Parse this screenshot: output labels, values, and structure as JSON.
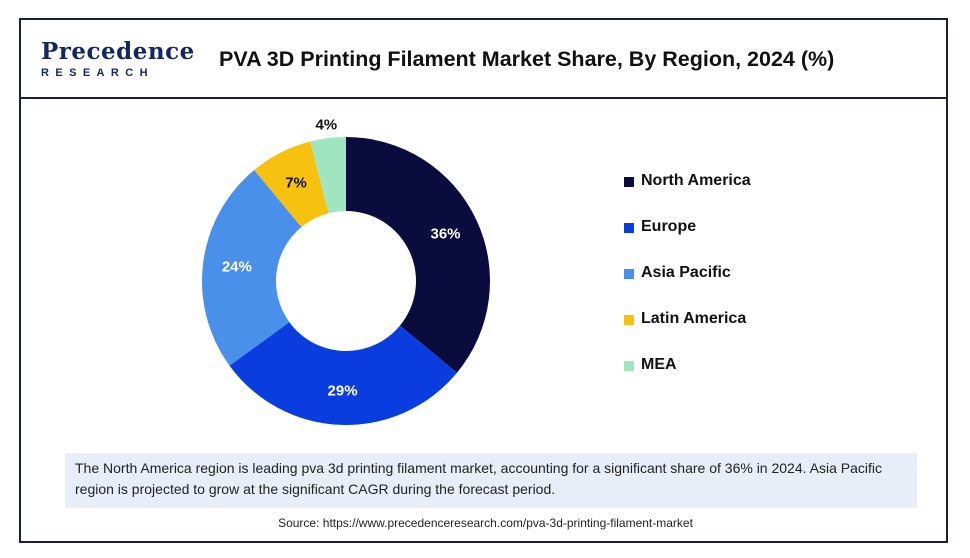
{
  "brand": {
    "logo_top": "Precedence",
    "logo_bottom": "RESEARCH"
  },
  "title": "PVA 3D Printing Filament Market Share, By Region, 2024 (%)",
  "chart_data": {
    "type": "pie",
    "donut": true,
    "title": "PVA 3D Printing Filament Market Share, By Region, 2024 (%)",
    "categories": [
      "North America",
      "Europe",
      "Asia Pacific",
      "Latin America",
      "MEA"
    ],
    "values": [
      36,
      29,
      24,
      7,
      4
    ],
    "labels": [
      "36%",
      "29%",
      "24%",
      "7%",
      "4%"
    ],
    "colors": [
      "#0b0c3e",
      "#0a3de0",
      "#4990ea",
      "#f6c10f",
      "#9fe5c0"
    ],
    "label_colors": [
      "#ffffff",
      "#ffffff",
      "#ffffff",
      "#111111",
      "#111111"
    ],
    "legend_position": "right"
  },
  "note": "The North America region is leading pva 3d printing filament market, accounting for a significant share of 36% in 2024. Asia Pacific region is projected to grow at the significant CAGR during the forecast period.",
  "source": "Source: https://www.precedenceresearch.com/pva-3d-printing-filament-market"
}
